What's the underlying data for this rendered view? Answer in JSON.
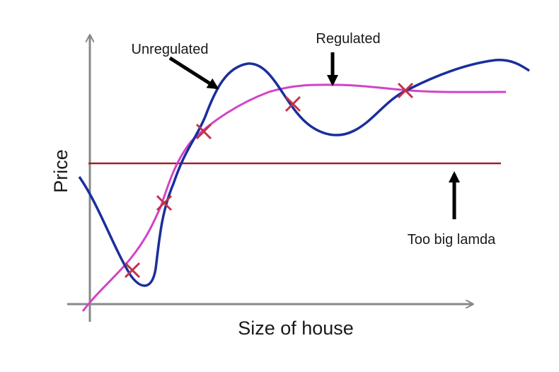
{
  "axes": {
    "y_label": "Price",
    "x_label": "Size of house"
  },
  "annotations": {
    "unregulated": "Unregulated",
    "regulated": "Regulated",
    "too_big_lambda": "Too big lamda"
  }
}
